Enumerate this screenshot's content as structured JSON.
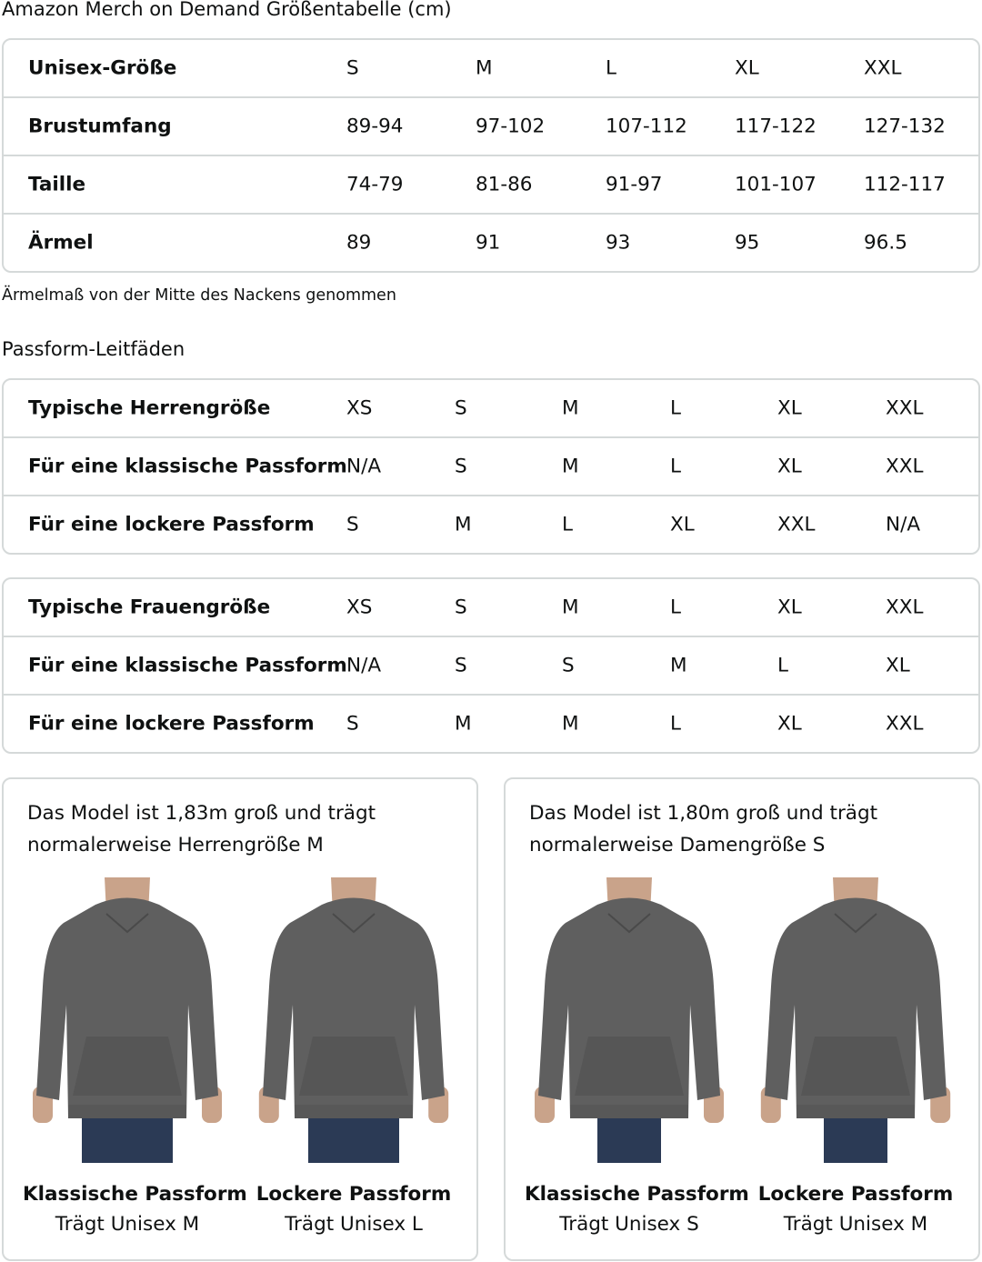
{
  "title": "Amazon Merch on Demand Größentabelle (cm)",
  "size_table": {
    "rows": [
      {
        "label": "Unisex-Größe",
        "values": [
          "S",
          "M",
          "L",
          "XL",
          "XXL"
        ]
      },
      {
        "label": "Brustumfang",
        "values": [
          "89-94",
          "97-102",
          "107-112",
          "117-122",
          "127-132"
        ]
      },
      {
        "label": "Taille",
        "values": [
          "74-79",
          "81-86",
          "91-97",
          "101-107",
          "112-117"
        ]
      },
      {
        "label": "Ärmel",
        "values": [
          "89",
          "91",
          "93",
          "95",
          "96.5"
        ]
      }
    ]
  },
  "sleeve_note": "Ärmelmaß von der Mitte des Nackens genommen",
  "fit_heading": "Passform-Leitfäden",
  "men_table": {
    "rows": [
      {
        "label": "Typische Herrengröße",
        "values": [
          "XS",
          "S",
          "M",
          "L",
          "XL",
          "XXL"
        ]
      },
      {
        "label": "Für eine klassische Passform",
        "values": [
          "N/A",
          "S",
          "M",
          "L",
          "XL",
          "XXL"
        ]
      },
      {
        "label": "Für eine lockere Passform",
        "values": [
          "S",
          "M",
          "L",
          "XL",
          "XXL",
          "N/A"
        ]
      }
    ]
  },
  "women_table": {
    "rows": [
      {
        "label": "Typische Frauengröße",
        "values": [
          "XS",
          "S",
          "M",
          "L",
          "XL",
          "XXL"
        ]
      },
      {
        "label": "Für eine klassische Passform",
        "values": [
          "N/A",
          "S",
          "S",
          "M",
          "L",
          "XL"
        ]
      },
      {
        "label": "Für eine lockere Passform",
        "values": [
          "S",
          "M",
          "M",
          "L",
          "XL",
          "XXL"
        ]
      }
    ]
  },
  "cards": [
    {
      "desc": "Das Model ist 1,83m groß und trägt normalerweise Herrengröße M",
      "figures": [
        {
          "title": "Klassische Passform",
          "sub": "Trägt Unisex M"
        },
        {
          "title": "Lockere Passform",
          "sub": "Trägt Unisex L"
        }
      ]
    },
    {
      "desc": "Das Model ist 1,80m groß und trägt normalerweise Damengröße S",
      "figures": [
        {
          "title": "Klassische Passform",
          "sub": "Trägt Unisex S"
        },
        {
          "title": "Lockere Passform",
          "sub": "Trägt Unisex M"
        }
      ]
    }
  ],
  "colors": {
    "border": "#d5d9d9",
    "hoodie": "#5f5f5f",
    "jeans": "#2b3a55",
    "skin": "#c9a38a"
  }
}
